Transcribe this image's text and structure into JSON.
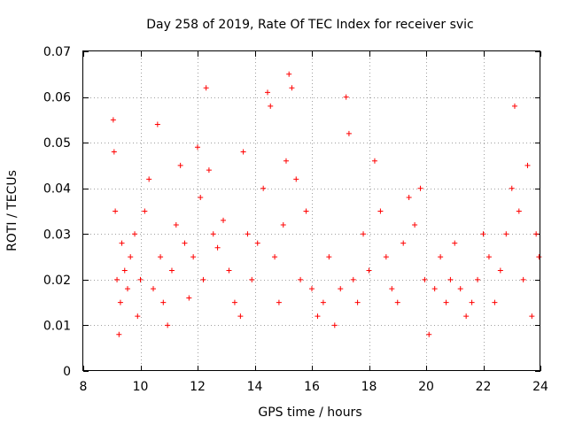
{
  "chart_data": {
    "type": "scatter",
    "title": "Day 258 of 2019, Rate Of TEC Index for receiver svic",
    "xlabel": "GPS time / hours",
    "ylabel": "ROTI / TECUs",
    "xlim": [
      8,
      24
    ],
    "ylim": [
      0,
      0.07
    ],
    "xticks": [
      "8",
      "10",
      "12",
      "14",
      "16",
      "18",
      "20",
      "22",
      "24"
    ],
    "yticks": [
      "0",
      "0.01",
      "0.02",
      "0.03",
      "0.04",
      "0.05",
      "0.06",
      "0.07"
    ],
    "grid": true,
    "marker": "+",
    "color": "#ff0000",
    "series": [
      {
        "name": "ROTI",
        "x": [
          9.05,
          9.08,
          9.12,
          9.18,
          9.25,
          9.3,
          9.35,
          9.45,
          9.55,
          9.65,
          9.8,
          9.9,
          10.0,
          10.15,
          10.3,
          10.45,
          10.6,
          10.7,
          10.8,
          10.95,
          11.1,
          11.25,
          11.4,
          11.55,
          11.7,
          11.85,
          12.0,
          12.1,
          12.2,
          12.3,
          12.4,
          12.55,
          12.7,
          12.9,
          13.1,
          13.3,
          13.5,
          13.6,
          13.75,
          13.9,
          14.1,
          14.3,
          14.45,
          14.55,
          14.7,
          14.85,
          15.0,
          15.1,
          15.2,
          15.3,
          15.45,
          15.6,
          15.8,
          16.0,
          16.2,
          16.4,
          16.6,
          16.8,
          17.0,
          17.2,
          17.3,
          17.45,
          17.6,
          17.8,
          18.0,
          18.2,
          18.4,
          18.6,
          18.8,
          19.0,
          19.2,
          19.4,
          19.6,
          19.8,
          19.95,
          20.1,
          20.3,
          20.5,
          20.7,
          20.85,
          21.0,
          21.2,
          21.4,
          21.6,
          21.8,
          22.0,
          22.2,
          22.4,
          22.6,
          22.8,
          23.0,
          23.1,
          23.25,
          23.4,
          23.55,
          23.7,
          23.85,
          23.95
        ],
        "y": [
          0.055,
          0.048,
          0.035,
          0.02,
          0.008,
          0.015,
          0.028,
          0.022,
          0.018,
          0.025,
          0.03,
          0.012,
          0.02,
          0.035,
          0.042,
          0.018,
          0.054,
          0.025,
          0.015,
          0.01,
          0.022,
          0.032,
          0.045,
          0.028,
          0.016,
          0.025,
          0.049,
          0.038,
          0.02,
          0.062,
          0.044,
          0.03,
          0.027,
          0.033,
          0.022,
          0.015,
          0.012,
          0.048,
          0.03,
          0.02,
          0.028,
          0.04,
          0.061,
          0.058,
          0.025,
          0.015,
          0.032,
          0.046,
          0.065,
          0.062,
          0.042,
          0.02,
          0.035,
          0.018,
          0.012,
          0.015,
          0.025,
          0.01,
          0.018,
          0.06,
          0.052,
          0.02,
          0.015,
          0.03,
          0.022,
          0.046,
          0.035,
          0.025,
          0.018,
          0.015,
          0.028,
          0.038,
          0.032,
          0.04,
          0.02,
          0.008,
          0.018,
          0.025,
          0.015,
          0.02,
          0.028,
          0.018,
          0.012,
          0.015,
          0.02,
          0.03,
          0.025,
          0.015,
          0.022,
          0.03,
          0.04,
          0.058,
          0.035,
          0.02,
          0.045,
          0.012,
          0.03,
          0.025
        ]
      }
    ]
  }
}
